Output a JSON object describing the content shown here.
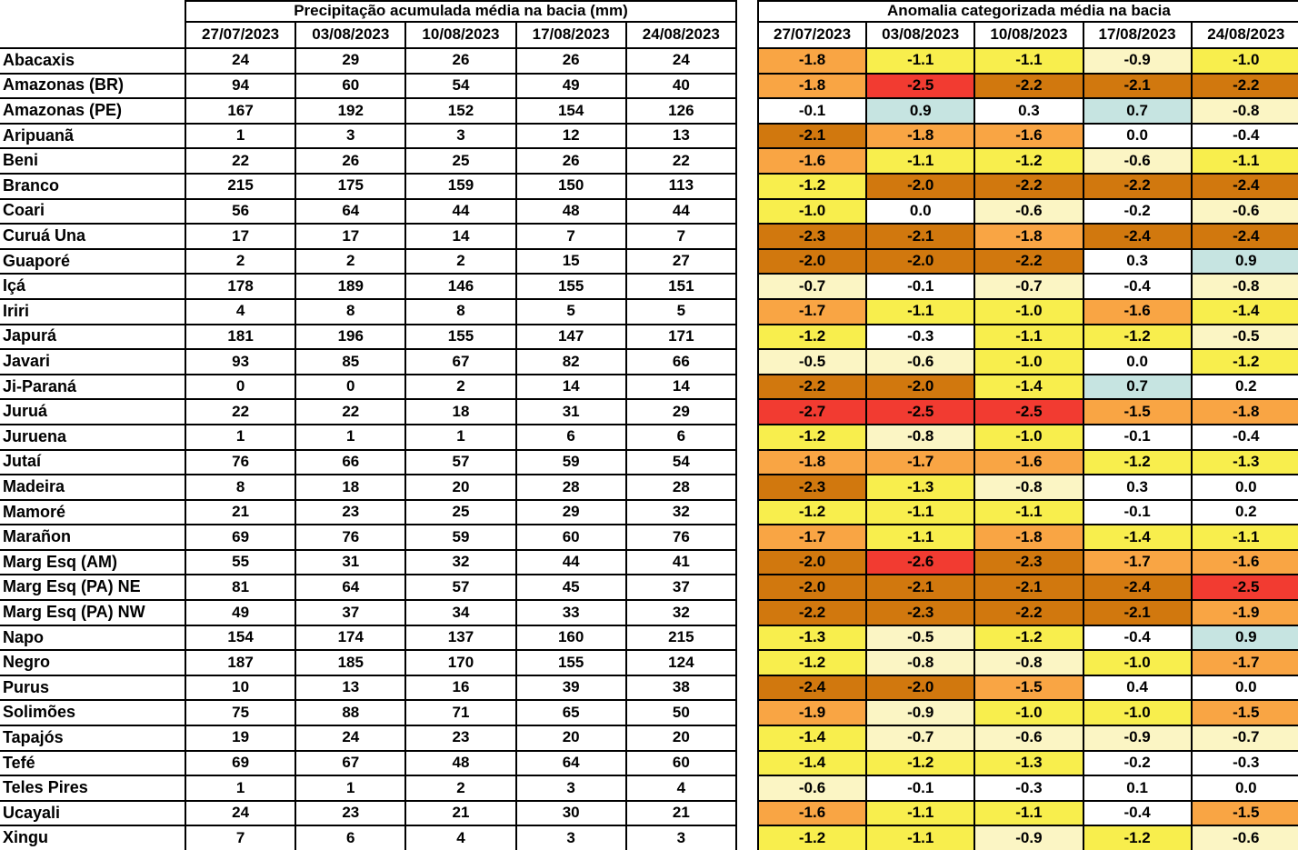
{
  "chart_data": {
    "type": "table",
    "columns": [
      "27/07/2023",
      "03/08/2023",
      "10/08/2023",
      "17/08/2023",
      "24/08/2023"
    ],
    "basins": [
      "Abacaxis",
      "Amazonas (BR)",
      "Amazonas (PE)",
      "Aripuanã",
      "Beni",
      "Branco",
      "Coari",
      "Curuá Una",
      "Guaporé",
      "Içá",
      "Iriri",
      "Japurá",
      "Javari",
      "Ji-Paraná",
      "Juruá",
      "Juruena",
      "Jutaí",
      "Madeira",
      "Mamoré",
      "Marañon",
      "Marg Esq (AM)",
      "Marg Esq (PA) NE",
      "Marg Esq (PA) NW",
      "Napo",
      "Negro",
      "Purus",
      "Solimões",
      "Tapajós",
      "Tefé",
      "Teles Pires",
      "Ucayali",
      "Xingu"
    ],
    "precipitation_mm": {
      "title": "Precipitação acumulada média na bacia (mm)",
      "values": [
        [
          24,
          29,
          26,
          26,
          24
        ],
        [
          94,
          60,
          54,
          49,
          40
        ],
        [
          167,
          192,
          152,
          154,
          126
        ],
        [
          1,
          3,
          3,
          12,
          13
        ],
        [
          22,
          26,
          25,
          26,
          22
        ],
        [
          215,
          175,
          159,
          150,
          113
        ],
        [
          56,
          64,
          44,
          48,
          44
        ],
        [
          17,
          17,
          14,
          7,
          7
        ],
        [
          2,
          2,
          2,
          15,
          27
        ],
        [
          178,
          189,
          146,
          155,
          151
        ],
        [
          4,
          8,
          8,
          5,
          5
        ],
        [
          181,
          196,
          155,
          147,
          171
        ],
        [
          93,
          85,
          67,
          82,
          66
        ],
        [
          0,
          0,
          2,
          14,
          14
        ],
        [
          22,
          22,
          18,
          31,
          29
        ],
        [
          1,
          1,
          1,
          6,
          6
        ],
        [
          76,
          66,
          57,
          59,
          54
        ],
        [
          8,
          18,
          20,
          28,
          28
        ],
        [
          21,
          23,
          25,
          29,
          32
        ],
        [
          69,
          76,
          59,
          60,
          76
        ],
        [
          55,
          31,
          32,
          44,
          41
        ],
        [
          81,
          64,
          57,
          45,
          37
        ],
        [
          49,
          37,
          34,
          33,
          32
        ],
        [
          154,
          174,
          137,
          160,
          215
        ],
        [
          187,
          185,
          170,
          155,
          124
        ],
        [
          10,
          13,
          16,
          39,
          38
        ],
        [
          75,
          88,
          71,
          65,
          50
        ],
        [
          19,
          24,
          23,
          20,
          20
        ],
        [
          69,
          67,
          48,
          64,
          60
        ],
        [
          1,
          1,
          2,
          3,
          4
        ],
        [
          24,
          23,
          21,
          30,
          21
        ],
        [
          7,
          6,
          4,
          3,
          3
        ]
      ]
    },
    "anomaly_category": {
      "title": "Anomalia categorizada média na bacia",
      "palette": {
        "red": "#F23B31",
        "dark_orange": "#D1780E",
        "orange": "#F9A544",
        "yellow": "#F8EE4D",
        "cream": "#FBF5C4",
        "white": "#FFFFFF",
        "blue": "#C6E4E1"
      },
      "values": [
        [
          -1.8,
          -1.1,
          -1.1,
          -0.9,
          -1.0
        ],
        [
          -1.8,
          -2.5,
          -2.2,
          -2.1,
          -2.2
        ],
        [
          -0.1,
          0.9,
          0.3,
          0.7,
          -0.8
        ],
        [
          -2.1,
          -1.8,
          -1.6,
          0.0,
          -0.4
        ],
        [
          -1.6,
          -1.1,
          -1.2,
          -0.6,
          -1.1
        ],
        [
          -1.2,
          -2.0,
          -2.2,
          -2.2,
          -2.4
        ],
        [
          -1.0,
          0.0,
          -0.6,
          -0.2,
          -0.6
        ],
        [
          -2.3,
          -2.1,
          -1.8,
          -2.4,
          -2.4
        ],
        [
          -2.0,
          -2.0,
          -2.2,
          0.3,
          0.9
        ],
        [
          -0.7,
          -0.1,
          -0.7,
          -0.4,
          -0.8
        ],
        [
          -1.7,
          -1.1,
          -1.0,
          -1.6,
          -1.4
        ],
        [
          -1.2,
          -0.3,
          -1.1,
          -1.2,
          -0.5
        ],
        [
          -0.5,
          -0.6,
          -1.0,
          0.0,
          -1.2
        ],
        [
          -2.2,
          -2.0,
          -1.4,
          0.7,
          0.2
        ],
        [
          -2.7,
          -2.5,
          -2.5,
          -1.5,
          -1.8
        ],
        [
          -1.2,
          -0.8,
          -1.0,
          -0.1,
          -0.4
        ],
        [
          -1.8,
          -1.7,
          -1.6,
          -1.2,
          -1.3
        ],
        [
          -2.3,
          -1.3,
          -0.8,
          0.3,
          0.0
        ],
        [
          -1.2,
          -1.1,
          -1.1,
          -0.1,
          0.2
        ],
        [
          -1.7,
          -1.1,
          -1.8,
          -1.4,
          -1.1
        ],
        [
          -2.0,
          -2.6,
          -2.3,
          -1.7,
          -1.6
        ],
        [
          -2.0,
          -2.1,
          -2.1,
          -2.4,
          -2.5
        ],
        [
          -2.2,
          -2.3,
          -2.2,
          -2.1,
          -1.9
        ],
        [
          -1.3,
          -0.5,
          -1.2,
          -0.4,
          0.9
        ],
        [
          -1.2,
          -0.8,
          -0.8,
          -1.0,
          -1.7
        ],
        [
          -2.4,
          -2.0,
          -1.5,
          0.4,
          0.0
        ],
        [
          -1.9,
          -0.9,
          -1.0,
          -1.0,
          -1.5
        ],
        [
          -1.4,
          -0.7,
          -0.6,
          -0.9,
          -0.7
        ],
        [
          -1.4,
          -1.2,
          -1.3,
          -0.2,
          -0.3
        ],
        [
          -0.6,
          -0.1,
          -0.3,
          0.1,
          0.0
        ],
        [
          -1.6,
          -1.1,
          -1.1,
          -0.4,
          -1.5
        ],
        [
          -1.2,
          -1.1,
          -0.9,
          -1.2,
          -0.6
        ]
      ],
      "cell_categories": [
        [
          "orange",
          "yellow",
          "yellow",
          "cream",
          "yellow"
        ],
        [
          "orange",
          "red",
          "dark_orange",
          "dark_orange",
          "dark_orange"
        ],
        [
          "white",
          "blue",
          "white",
          "blue",
          "cream"
        ],
        [
          "dark_orange",
          "orange",
          "orange",
          "white",
          "white"
        ],
        [
          "orange",
          "yellow",
          "yellow",
          "cream",
          "yellow"
        ],
        [
          "yellow",
          "dark_orange",
          "dark_orange",
          "dark_orange",
          "dark_orange"
        ],
        [
          "yellow",
          "white",
          "cream",
          "white",
          "cream"
        ],
        [
          "dark_orange",
          "dark_orange",
          "orange",
          "dark_orange",
          "dark_orange"
        ],
        [
          "dark_orange",
          "dark_orange",
          "dark_orange",
          "white",
          "blue"
        ],
        [
          "cream",
          "white",
          "cream",
          "white",
          "cream"
        ],
        [
          "orange",
          "yellow",
          "yellow",
          "orange",
          "yellow"
        ],
        [
          "yellow",
          "white",
          "yellow",
          "yellow",
          "cream"
        ],
        [
          "cream",
          "cream",
          "yellow",
          "white",
          "yellow"
        ],
        [
          "dark_orange",
          "dark_orange",
          "yellow",
          "blue",
          "white"
        ],
        [
          "red",
          "red",
          "red",
          "orange",
          "orange"
        ],
        [
          "yellow",
          "cream",
          "yellow",
          "white",
          "white"
        ],
        [
          "orange",
          "orange",
          "orange",
          "yellow",
          "yellow"
        ],
        [
          "dark_orange",
          "yellow",
          "cream",
          "white",
          "white"
        ],
        [
          "yellow",
          "yellow",
          "yellow",
          "white",
          "white"
        ],
        [
          "orange",
          "yellow",
          "orange",
          "yellow",
          "yellow"
        ],
        [
          "dark_orange",
          "red",
          "dark_orange",
          "orange",
          "orange"
        ],
        [
          "dark_orange",
          "dark_orange",
          "dark_orange",
          "dark_orange",
          "red"
        ],
        [
          "dark_orange",
          "dark_orange",
          "dark_orange",
          "dark_orange",
          "orange"
        ],
        [
          "yellow",
          "cream",
          "yellow",
          "white",
          "blue"
        ],
        [
          "yellow",
          "cream",
          "cream",
          "yellow",
          "orange"
        ],
        [
          "dark_orange",
          "dark_orange",
          "orange",
          "white",
          "white"
        ],
        [
          "orange",
          "cream",
          "yellow",
          "yellow",
          "orange"
        ],
        [
          "yellow",
          "cream",
          "cream",
          "cream",
          "cream"
        ],
        [
          "yellow",
          "yellow",
          "yellow",
          "white",
          "white"
        ],
        [
          "cream",
          "white",
          "white",
          "white",
          "white"
        ],
        [
          "orange",
          "yellow",
          "yellow",
          "white",
          "orange"
        ],
        [
          "yellow",
          "yellow",
          "cream",
          "yellow",
          "cream"
        ]
      ]
    }
  }
}
